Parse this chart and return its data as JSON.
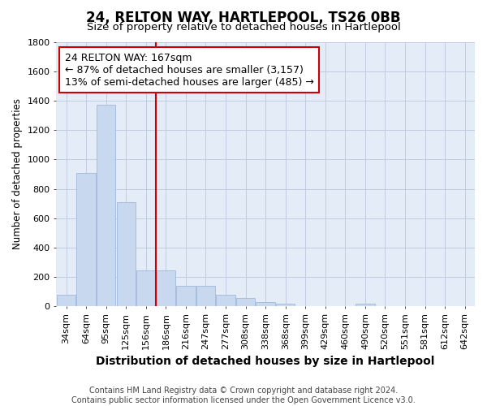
{
  "title": "24, RELTON WAY, HARTLEPOOL, TS26 0BB",
  "subtitle": "Size of property relative to detached houses in Hartlepool",
  "xlabel": "Distribution of detached houses by size in Hartlepool",
  "ylabel": "Number of detached properties",
  "footer_line1": "Contains HM Land Registry data © Crown copyright and database right 2024.",
  "footer_line2": "Contains public sector information licensed under the Open Government Licence v3.0.",
  "annotation_line1": "24 RELTON WAY: 167sqm",
  "annotation_line2": "← 87% of detached houses are smaller (3,157)",
  "annotation_line3": "13% of semi-detached houses are larger (485) →",
  "bar_color": "#c8d8ee",
  "bar_edge_color": "#a0b8d8",
  "vline_color": "#cc0000",
  "grid_color": "#c0cce0",
  "background_color": "#e4ecf8",
  "ylim": [
    0,
    1800
  ],
  "yticks": [
    0,
    200,
    400,
    600,
    800,
    1000,
    1200,
    1400,
    1600,
    1800
  ],
  "categories": [
    "34sqm",
    "64sqm",
    "95sqm",
    "125sqm",
    "156sqm",
    "186sqm",
    "216sqm",
    "247sqm",
    "277sqm",
    "308sqm",
    "338sqm",
    "368sqm",
    "399sqm",
    "429sqm",
    "460sqm",
    "490sqm",
    "520sqm",
    "551sqm",
    "581sqm",
    "612sqm",
    "642sqm"
  ],
  "values": [
    80,
    910,
    1370,
    710,
    245,
    245,
    140,
    140,
    80,
    55,
    30,
    20,
    0,
    0,
    0,
    20,
    0,
    0,
    0,
    0,
    0
  ],
  "vline_index": 4,
  "title_fontsize": 12,
  "subtitle_fontsize": 9.5,
  "ylabel_fontsize": 8.5,
  "xlabel_fontsize": 10,
  "annotation_fontsize": 9,
  "tick_fontsize": 8,
  "footer_fontsize": 7
}
